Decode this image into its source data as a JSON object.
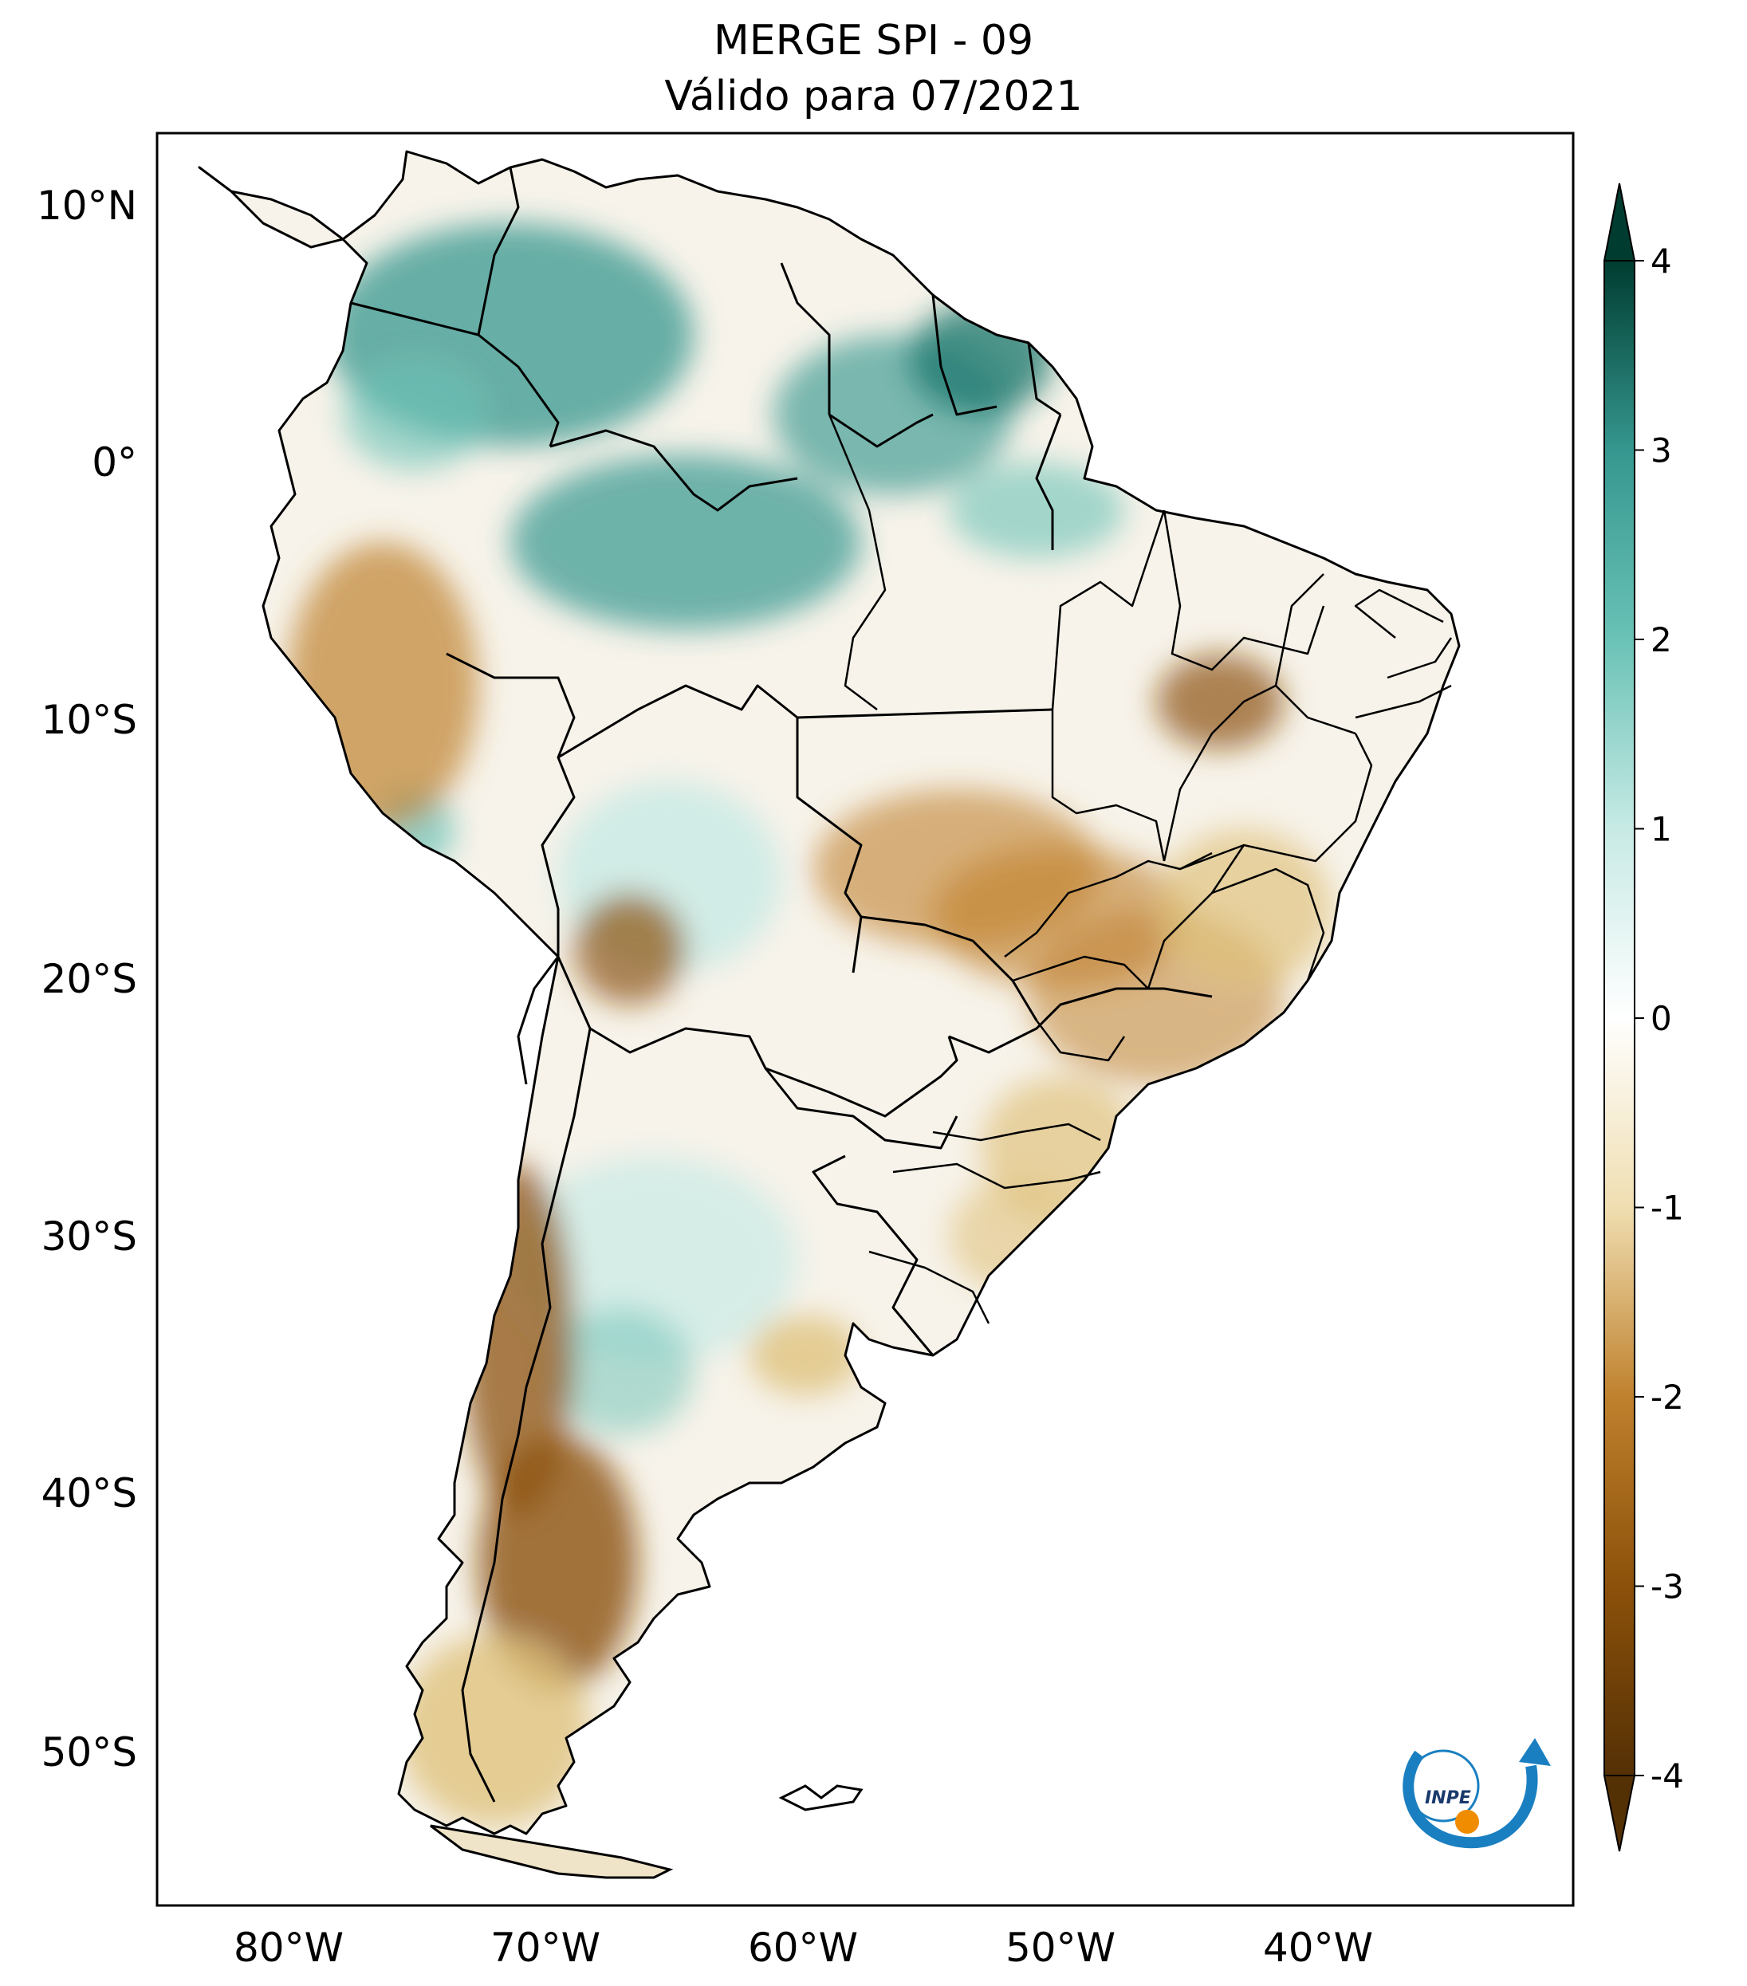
{
  "title": {
    "line1": "MERGE   SPI - 09",
    "line2": "Válido para 07/2021"
  },
  "map": {
    "region": "South America",
    "variable": "SPI - 09",
    "lat_labels": [
      "10°N",
      "0°",
      "10°S",
      "20°S",
      "30°S",
      "40°S",
      "50°S"
    ],
    "lon_labels": [
      "80°W",
      "70°W",
      "60°W",
      "50°W",
      "40°W"
    ],
    "extent": {
      "lon_min": -85,
      "lon_max": -30,
      "lat_min": -56,
      "lat_max": 13
    }
  },
  "colorbar": {
    "min": -4,
    "max": 4,
    "ticks": [
      "4",
      "3",
      "2",
      "1",
      "0",
      "-1",
      "-2",
      "-3",
      "-4"
    ],
    "extend": "both",
    "colors": {
      "c_m4": "#543005",
      "c_m3": "#8c510a",
      "c_m2": "#bf812d",
      "c_m1": "#f0deb1",
      "c_0": "#ffffff",
      "c_1": "#c7eae5",
      "c_2": "#6ac2b6",
      "c_3": "#35978f",
      "c_4": "#003c30"
    }
  },
  "logo": {
    "text": "INPE"
  }
}
